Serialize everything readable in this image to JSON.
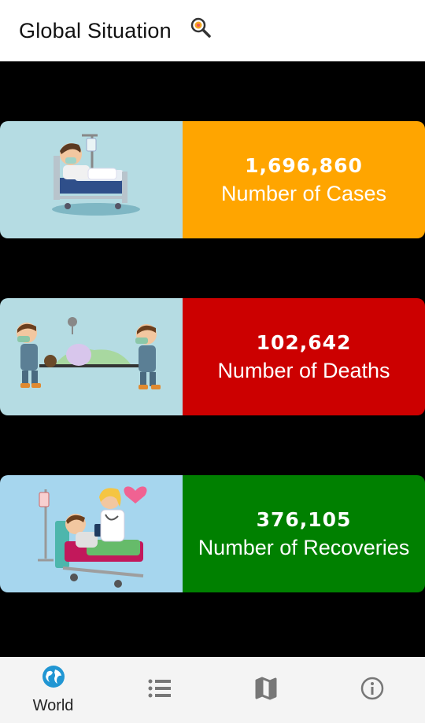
{
  "appbar": {
    "title": "Global Situation",
    "search_icon": "search-virus-icon"
  },
  "colors": {
    "cases": "#ffa500",
    "deaths": "#cc0000",
    "recoveries": "#008000",
    "nav_active": "#2196d3"
  },
  "stats": {
    "cases": {
      "value": "1,696,860",
      "label": "Number of Cases"
    },
    "deaths": {
      "value": "102,642",
      "label": "Number of Deaths"
    },
    "recoveries": {
      "value": "376,105",
      "label": "Number of Recoveries"
    }
  },
  "nav": {
    "items": [
      {
        "label": "World",
        "icon": "globe-icon",
        "active": true
      },
      {
        "label": "",
        "icon": "list-icon",
        "active": false
      },
      {
        "label": "",
        "icon": "map-icon",
        "active": false
      },
      {
        "label": "",
        "icon": "info-icon",
        "active": false
      }
    ]
  }
}
